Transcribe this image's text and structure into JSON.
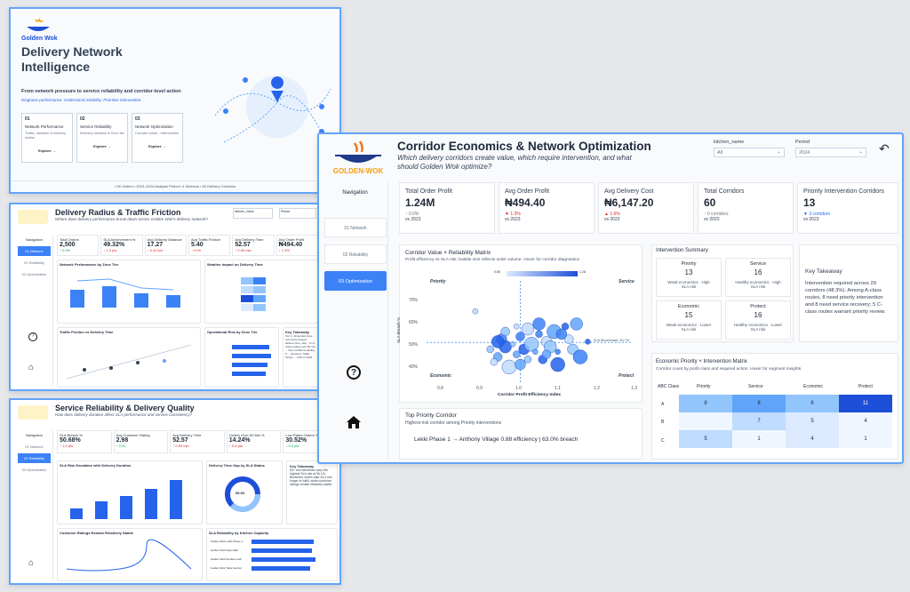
{
  "cover": {
    "brand": "Golden Wok",
    "title": "Delivery Network Intelligence",
    "tagline": "From network pressure to service reliability and corridor-level action",
    "subtag": "Diagnose performance. Understand reliability. Prioritize intervention.",
    "cards": [
      {
        "num": "01",
        "title": "Network Performance",
        "sub": "Traffic, weather & delivery radius",
        "cta": "Explore →"
      },
      {
        "num": "02",
        "title": "Service Reliability",
        "sub": "Delivery duration & SLA risk",
        "cta": "Explore →"
      },
      {
        "num": "03",
        "title": "Network Optimization",
        "sub": "Corridor value - intervention",
        "cta": "Explore →"
      }
    ],
    "footer": "• 5K Orders • 2023–2024 Analysis Period • 4 Kitchens • 60 Delivery Corridors"
  },
  "page2": {
    "title": "Delivery Radius & Traffic Friction",
    "subtitle": "Where does delivery performance break down across Golden Wok's delivery network?",
    "filter1": "kitchen_name",
    "filter2": "Period",
    "nav": [
      "Navigation",
      "01 Network",
      "02 Reliability",
      "03 Optimization"
    ],
    "kpis": [
      {
        "label": "Total Orders",
        "value": "2,500",
        "delta": "↑ 0.0%",
        "vs": "vs 2023"
      },
      {
        "label": "SLA Achievement %",
        "value": "49.32%",
        "delta": "↓ 1.0 pts",
        "vs": "vs 2023"
      },
      {
        "label": "Avg Delivery Distance",
        "value": "17.27",
        "delta": "↓ 0.42 km",
        "vs": "vs 2023"
      },
      {
        "label": "Avg Traffic Friction",
        "value": "5.40",
        "delta": "↑ 0.09",
        "vs": "vs 2023"
      },
      {
        "label": "Avg Delivery Time",
        "value": "52.57",
        "delta": "↑ 0.59 min",
        "vs": "vs 2023"
      },
      {
        "label": "Avg Order Profit",
        "value": "₦494.40",
        "delta": "↓ 1.3%",
        "vs": "vs 2023"
      }
    ],
    "panel1": "Network Performance by Zone Tier",
    "panel2": "Weather Impact on Delivery Time",
    "panel3": "Traffic Friction vs Delivery Time",
    "panel4": "Operational Risk by Zone Tier",
    "panel5": "Key Takeaway",
    "takeaway": "Tier 3 - Extended Zone record the longest delivery time, with ...% of orders taking over 60 min ... flow conditions adding 5 ... pressure. Traffic friction ... 0.69 vs 2023."
  },
  "page3": {
    "title": "Service Reliability & Delivery Quality",
    "subtitle": "How does delivery duration affect SLA performance and service consistency?",
    "nav": [
      "Navigation",
      "01 Network",
      "02 Reliability",
      "03 Optimization"
    ],
    "kpis": [
      {
        "label": "SLA Breach %",
        "value": "50.68%",
        "delta": "↑ 1.0 pts",
        "vs": "vs 2023"
      },
      {
        "label": "Avg Customer Rating",
        "value": "2.98",
        "delta": "↑ 0.01",
        "vs": "vs 2023"
      },
      {
        "label": "Avg Delivery Time",
        "value": "52.57",
        "delta": "↑ 0.59 min",
        "vs": "vs 2023"
      },
      {
        "label": "Orders Over 60 Min %",
        "value": "14.24%",
        "delta": "↑ 0.5 pts",
        "vs": "vs 2023"
      },
      {
        "label": "Low Rated Orders %",
        "value": "30.52%",
        "delta": "↓ 0.4 pts",
        "vs": "vs 2023"
      }
    ],
    "panel1": "SLA Risk Escalates with Delivery Duration",
    "panel2": "Delivery Time Gap by SLA Status",
    "panel3": "Key Takeaway",
    "panel4": "Customer Ratings Remain Relatively Stable",
    "panel5": "SLA Reliability by Kitchen Capacity",
    "takeaway": "60+ min deliveries carry the highest SLA risk at 96.1%. Breached orders take 33.3 min longer to fulfill, while customer ratings remain relatively stable.",
    "donut": "55.53",
    "kitchens": [
      "Golden Wok Lekki Phase 1",
      "Golden Wok Ikeja GRA",
      "Golden Wok Surulere Hub",
      "Golden Wok Yaba Central"
    ]
  },
  "main": {
    "title": "Corridor Economics & Network Optimization",
    "subtitle": "Which delivery corridors create value, which require intervention, and what should Golden Wok optimize?",
    "filter1_label": "kitchen_name",
    "filter1_value": "All",
    "filter2_label": "Period",
    "filter2_value": "2024",
    "nav_heading": "Navigation",
    "nav": [
      "01 Network",
      "02 Reliability",
      "03 Optimization"
    ],
    "kpis": [
      {
        "label": "Total Order Profit",
        "value": "1.24M",
        "delta": "↑ 0.0%",
        "vs": "vs 2023",
        "color": "#6b7280"
      },
      {
        "label": "Avg Order Profit",
        "value": "₦494.40",
        "delta": "▼ 1.3%",
        "vs": "vs 2023",
        "color": "#dc2626"
      },
      {
        "label": "Avg Delivery Cost",
        "value": "₦6,147.20",
        "delta": "▲ 1.6%",
        "vs": "vs 2023",
        "color": "#dc2626"
      },
      {
        "label": "Total Corridors",
        "value": "60",
        "delta": "↑ 0 corridors",
        "vs": "vs 2023",
        "color": "#6b7280"
      },
      {
        "label": "Priority Intervention Corridors",
        "value": "13",
        "delta": "▼ 3 corridors",
        "vs": "vs 2023",
        "color": "#2563eb"
      }
    ],
    "matrix_title": "Corridor Value × Reliability Matrix",
    "matrix_sub": "Profit efficiency vs SLA risk; bubble size reflects order volume. Hover for corridor diagnostics",
    "legend_min": "0.80",
    "legend_max": "1.28",
    "quad": {
      "priority": "Priority",
      "service": "Service",
      "economic": "Economic",
      "protect": "Protect"
    },
    "ylabel": "SLA Breach %",
    "xlabel": "Corridor Profit Efficiency Index",
    "benchmark": "SLA Benchmark: 50.7%",
    "yticks": [
      "70%",
      "60%",
      "50%",
      "40%"
    ],
    "xticks": [
      "0.8",
      "0.9",
      "1.0",
      "1.1",
      "1.2",
      "1.3"
    ],
    "summary_title": "Intervention Summary",
    "summary": [
      {
        "name": "Priority",
        "value": "13",
        "desc": "Weak economics · High SLA risk"
      },
      {
        "name": "Service",
        "value": "16",
        "desc": "Healthy economics · High SLA risk"
      },
      {
        "name": "Economic",
        "value": "15",
        "desc": "Weak economics · Lower SLA risk"
      },
      {
        "name": "Protect",
        "value": "16",
        "desc": "Healthy economics · Lower SLA risk"
      }
    ],
    "key_title": "Key Takeaway",
    "key_text": "Intervention required across 29 corridors (48.3%). Among A-class routes, 8 need priority intervention and 8 need service recovery; 5 C-class routes warrant priority review.",
    "top_title": "Top Priority Corridor",
    "top_sub": "Highest-risk corridor among Priority interventions",
    "top_value": "Lekki Phase 1 → Anthony Village 0.88 efficiency | 63.0% breach",
    "ep_title": "Economic Priority × Intervention Matrix",
    "ep_sub": "Corridor count by profit class and required action. Hover for segment insights.",
    "ep_headers": [
      "ABC Class",
      "Priority",
      "Service",
      "Economic",
      "Protect"
    ],
    "ep_rows": [
      {
        "cls": "A",
        "vals": [
          "8",
          "8",
          "6",
          "11"
        ]
      },
      {
        "cls": "B",
        "vals": [
          "",
          "7",
          "5",
          "4"
        ]
      },
      {
        "cls": "C",
        "vals": [
          "5",
          "1",
          "4",
          "1"
        ]
      }
    ]
  },
  "colors": {
    "accent": "#3b82f6",
    "dark": "#2563eb",
    "orange": "#f59e0b"
  },
  "chart_data": {
    "type": "scatter",
    "title": "Corridor Value × Reliability Matrix",
    "xlabel": "Corridor Profit Efficiency Index",
    "ylabel": "SLA Breach %",
    "xlim": [
      0.75,
      1.3
    ],
    "ylim": [
      35,
      75
    ],
    "points": [
      [
        0.88,
        63
      ],
      [
        0.92,
        48
      ],
      [
        0.94,
        45
      ],
      [
        0.95,
        52
      ],
      [
        0.96,
        49
      ],
      [
        0.97,
        41
      ],
      [
        0.98,
        50
      ],
      [
        0.99,
        46
      ],
      [
        1.0,
        53
      ],
      [
        1.01,
        48
      ],
      [
        1.02,
        56
      ],
      [
        1.03,
        50
      ],
      [
        1.04,
        47
      ],
      [
        1.05,
        54
      ],
      [
        1.06,
        44
      ],
      [
        1.07,
        51
      ],
      [
        1.08,
        49
      ],
      [
        1.09,
        55
      ],
      [
        1.1,
        47
      ],
      [
        1.12,
        57
      ],
      [
        1.13,
        52
      ],
      [
        1.14,
        48
      ],
      [
        1.15,
        58
      ],
      [
        1.16,
        45
      ],
      [
        1.18,
        51
      ],
      [
        0.93,
        43
      ],
      [
        0.96,
        55
      ],
      [
        1.0,
        42
      ],
      [
        1.05,
        58
      ],
      [
        1.1,
        42
      ],
      [
        0.99,
        57
      ],
      [
        1.02,
        44
      ],
      [
        1.07,
        46
      ],
      [
        1.11,
        54
      ],
      [
        0.94,
        51
      ]
    ]
  }
}
